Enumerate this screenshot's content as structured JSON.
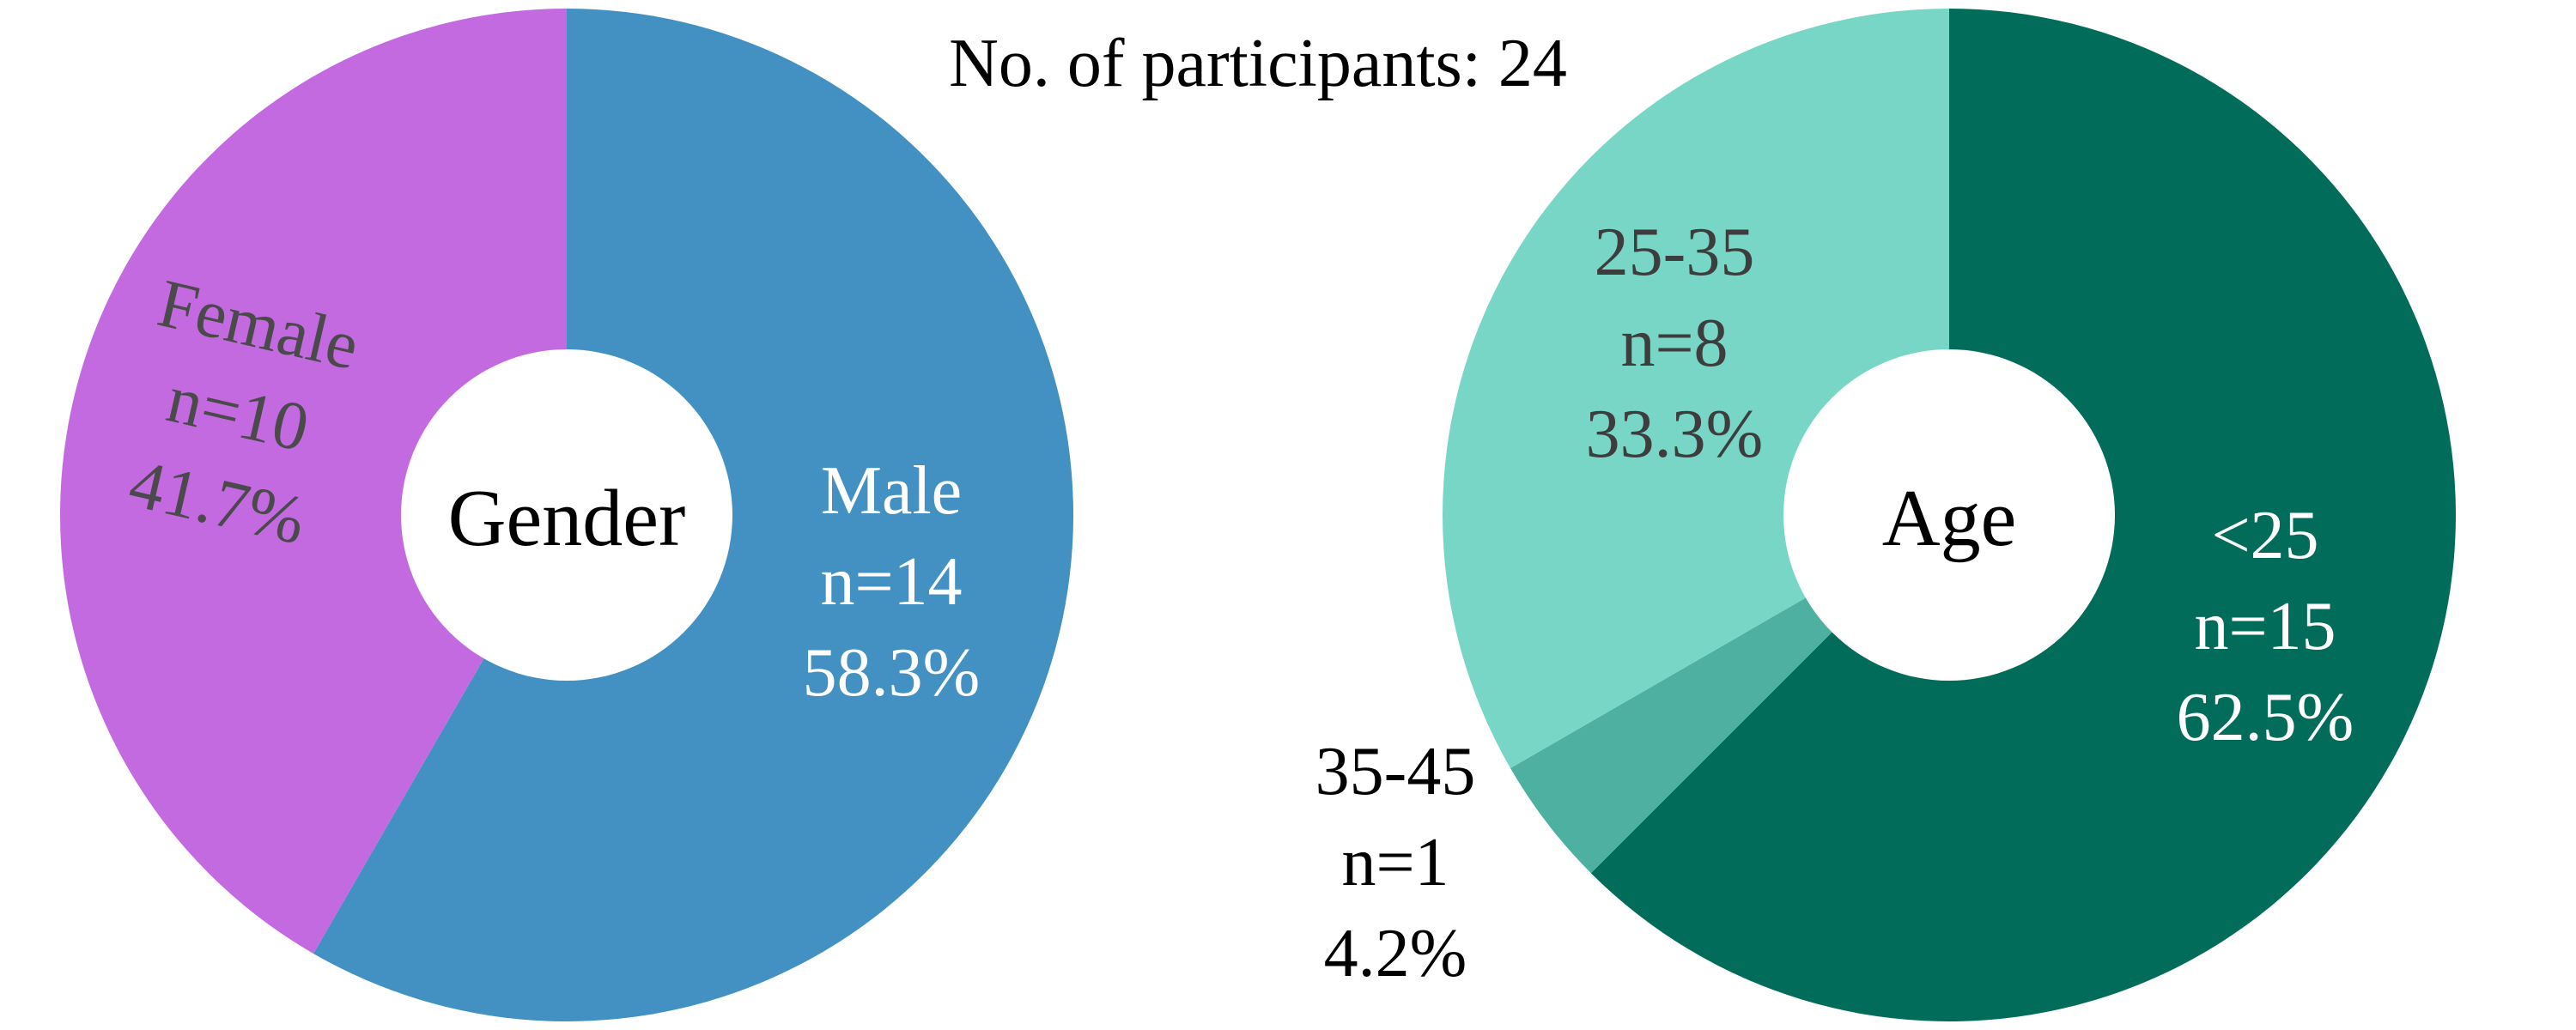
{
  "header": {
    "participants": "No. of participants: 24"
  },
  "chart_data": [
    {
      "type": "pie",
      "variant": "donut",
      "center_label": "Gender",
      "slices": [
        {
          "category": "Male",
          "count": 14,
          "percent": 58.3,
          "label_lines": [
            "Male",
            "n=14",
            "58.3%"
          ],
          "color": "#4391C3",
          "label_color": "#ffffff"
        },
        {
          "category": "Female",
          "count": 10,
          "percent": 41.7,
          "label_lines": [
            "Female",
            "n=10",
            "41.7%"
          ],
          "color": "#C36AE1",
          "label_color": "#4A4A4A"
        }
      ]
    },
    {
      "type": "pie",
      "variant": "donut",
      "center_label": "Age",
      "slices": [
        {
          "category": "<25",
          "count": 15,
          "percent": 62.5,
          "label_lines": [
            "<25",
            "n=15",
            "62.5%"
          ],
          "color": "#026C5B",
          "label_color": "#ffffff"
        },
        {
          "category": "35-45",
          "count": 1,
          "percent": 4.2,
          "label_lines": [
            "35-45",
            "n=1",
            "4.2%"
          ],
          "color": "#4DB0A1",
          "label_color": "#000000"
        },
        {
          "category": "25-35",
          "count": 8,
          "percent": 33.3,
          "label_lines": [
            "25-35",
            "n=8",
            "33.3%"
          ],
          "color": "#78D6C6",
          "label_color": "#3D3D3D"
        }
      ]
    }
  ]
}
